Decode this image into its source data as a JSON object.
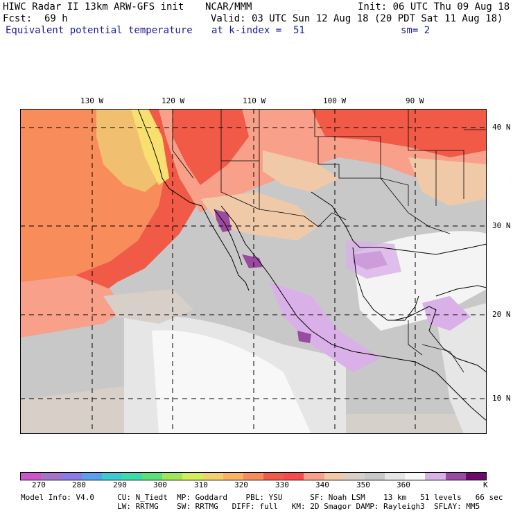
{
  "header": {
    "title": "HIWC Radar II 13km ARW-GFS init",
    "center": "NCAR/MMM",
    "init": "Init: 06 UTC Thu 09 Aug 18",
    "fcst_label": "Fcst:",
    "fcst_value": "69 h",
    "valid": "Valid: 03 UTC Sun 12 Aug 18 (20 PDT Sat 11 Aug 18)",
    "field": "Equivalent potential temperature",
    "level": "at k-index =  51",
    "smooth": "sm= 2"
  },
  "axes": {
    "lon_labels": [
      "130 W",
      "120 W",
      "110 W",
      "100 W",
      "90 W"
    ],
    "lat_labels": [
      "40 N",
      "30 N",
      "20 N",
      "10 N"
    ]
  },
  "colorbar": {
    "colors": [
      "#cc55cc",
      "#a673c8",
      "#8c7be6",
      "#5aa0ec",
      "#3ccad2",
      "#3cdcaa",
      "#5ce07a",
      "#a0e65a",
      "#d2ec5a",
      "#f0d070",
      "#f8b464",
      "#f88c5a",
      "#f05a46",
      "#f84a4a",
      "#f8a08a",
      "#f0caa8",
      "#d8d0c8",
      "#c8c8c8",
      "#e6e6e6",
      "#f8f8f8",
      "#dab0e8",
      "#9a4aa0",
      "#6e0a6e"
    ],
    "labels": [
      "270",
      "280",
      "290",
      "300",
      "310",
      "320",
      "330",
      "340",
      "350",
      "360"
    ],
    "unit": "K"
  },
  "footer": {
    "line1": "Model Info: V4.0     CU: N_Tiedt  MP: Goddard    PBL: YSU      SF: Noah LSM    13 km   51 levels   66 sec",
    "line2": "                     LW: RRTMG    SW: RRTMG   DIFF: full   KM: 2D Smagor DAMP: Rayleigh3  SFLAY: MM5"
  }
}
